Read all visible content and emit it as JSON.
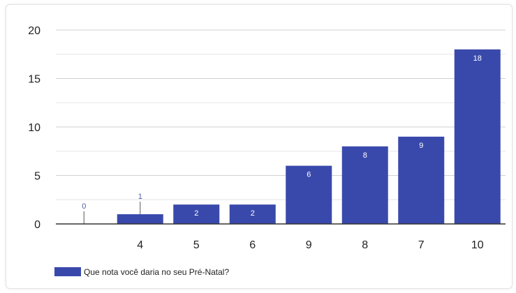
{
  "chart_data": {
    "type": "bar",
    "categories": [
      "",
      "4",
      "5",
      "6",
      "9",
      "8",
      "7",
      "10"
    ],
    "series": [
      {
        "name": "Que nota você daria no seu Pré-Natal?",
        "values": [
          0,
          1,
          2,
          2,
          6,
          8,
          9,
          18
        ]
      }
    ],
    "data_labels": [
      "0",
      "1",
      "2",
      "2",
      "6",
      "8",
      "9",
      "18"
    ],
    "ylim": [
      0,
      20
    ],
    "yticks": [
      0,
      5,
      10,
      15,
      20
    ],
    "minor_gridlines": true,
    "grid": true,
    "legend_position": "bottom-left",
    "colors": {
      "bar": "#3949ab",
      "label_outside": "#4a5ea8",
      "grid": "#d0d0d0",
      "axis": "#333333"
    }
  }
}
